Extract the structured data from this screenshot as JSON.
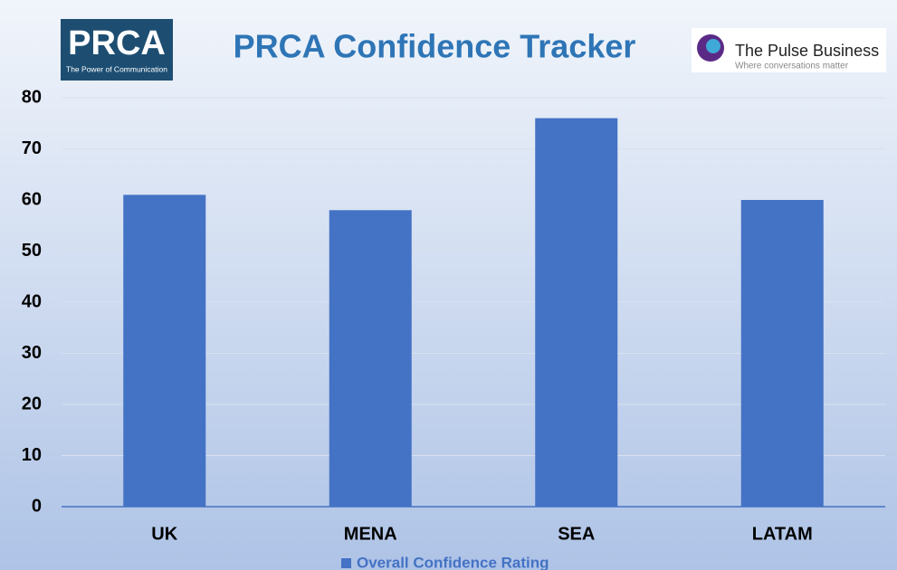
{
  "logos": {
    "left": {
      "name": "PRCA",
      "tagline": "The Power of Communication"
    },
    "right": {
      "name": "The Pulse Business",
      "tagline": "Where conversations matter"
    }
  },
  "chart_data": {
    "type": "bar",
    "title": "PRCA Confidence Tracker",
    "categories": [
      "UK",
      "MENA",
      "SEA",
      "LATAM"
    ],
    "series": [
      {
        "name": "Overall Confidence Rating",
        "color": "#4472c4",
        "values": [
          61,
          58,
          76,
          60
        ]
      }
    ],
    "ylim": [
      0,
      80
    ],
    "yticks": [
      0,
      10,
      20,
      30,
      40,
      50,
      60,
      70,
      80
    ],
    "grid": true,
    "legend": "bottom"
  }
}
